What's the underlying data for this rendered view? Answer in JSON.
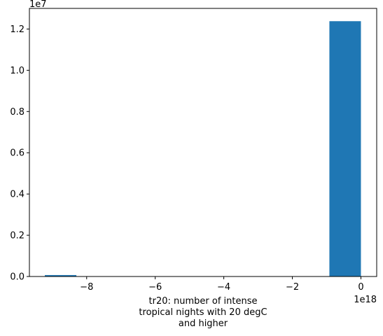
{
  "chart_data": {
    "type": "bar",
    "title": "",
    "xlabel": [
      "tr20: number of intense",
      "tropical nights with 20 degC",
      "and higher"
    ],
    "ylabel": "",
    "x_multiplier_label": "1e18",
    "y_multiplier_label": "1e7",
    "x_unit_scale": 1e+18,
    "y_unit_scale": 10000000.0,
    "xlim": [
      -9.67,
      0.46
    ],
    "ylim": [
      0,
      1.3
    ],
    "x_ticks": [
      -8,
      -6,
      -4,
      -2,
      0
    ],
    "x_tick_labels": [
      "−8",
      "−6",
      "−4",
      "−2",
      "0"
    ],
    "y_ticks": [
      0.0,
      0.2,
      0.4,
      0.6,
      0.8,
      1.0,
      1.2
    ],
    "y_tick_labels": [
      "0.0",
      "0.2",
      "0.4",
      "0.6",
      "0.8",
      "1.0",
      "1.2"
    ],
    "bins": [
      {
        "x0": -9.22,
        "x1": -8.3,
        "count": 0.007
      },
      {
        "x0": -8.3,
        "x1": -7.38,
        "count": 0
      },
      {
        "x0": -7.38,
        "x1": -6.46,
        "count": 0
      },
      {
        "x0": -6.46,
        "x1": -5.53,
        "count": 0
      },
      {
        "x0": -5.53,
        "x1": -4.61,
        "count": 0
      },
      {
        "x0": -4.61,
        "x1": -3.69,
        "count": 0
      },
      {
        "x0": -3.69,
        "x1": -2.77,
        "count": 0
      },
      {
        "x0": -2.77,
        "x1": -1.84,
        "count": 0
      },
      {
        "x0": -1.84,
        "x1": -0.92,
        "count": 0
      },
      {
        "x0": -0.92,
        "x1": 0.0,
        "count": 1.238
      }
    ],
    "bar_color": "#1f77b4",
    "grid": false,
    "legend": "none"
  }
}
